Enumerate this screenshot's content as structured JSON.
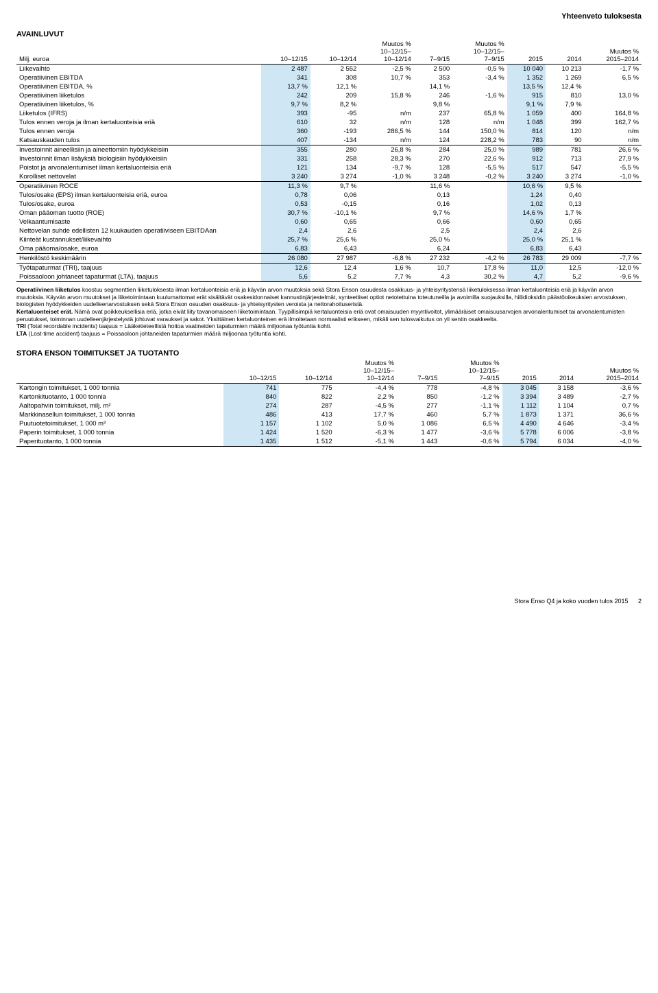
{
  "header": {
    "top_right": "Yhteenveto tuloksesta"
  },
  "avainluvut": {
    "title": "AVAINLUVUT",
    "columns": [
      "Milj. euroa",
      "10–12/15",
      "10–12/14",
      "Muutos %\n10–12/15–\n10–12/14",
      "7–9/15",
      "Muutos %\n10–12/15–\n7–9/15",
      "2015",
      "2014",
      "Muutos %\n2015–2014"
    ],
    "rows": [
      {
        "label": "Liikevaihto",
        "c": [
          "2 487",
          "2 552",
          "-2,5 %",
          "2 500",
          "-0,5 %",
          "10 040",
          "10 213",
          "-1,7 %"
        ],
        "ul": false
      },
      {
        "label": "Operatiivinen EBITDA",
        "c": [
          "341",
          "308",
          "10,7 %",
          "353",
          "-3,4 %",
          "1 352",
          "1 269",
          "6,5 %"
        ],
        "ul": false
      },
      {
        "label": "Operatiivinen EBITDA, %",
        "c": [
          "13,7 %",
          "12,1 %",
          "",
          "14,1 %",
          "",
          "13,5 %",
          "12,4 %",
          ""
        ],
        "ul": false
      },
      {
        "label": "Operatiivinen liiketulos",
        "c": [
          "242",
          "209",
          "15,8 %",
          "246",
          "-1,6 %",
          "915",
          "810",
          "13,0 %"
        ],
        "ul": false
      },
      {
        "label": "Operatiivinen liiketulos, %",
        "c": [
          "9,7 %",
          "8,2 %",
          "",
          "9,8 %",
          "",
          "9,1 %",
          "7,9 %",
          ""
        ],
        "ul": false
      },
      {
        "label": "Liiketulos (IFRS)",
        "c": [
          "393",
          "-95",
          "n/m",
          "237",
          "65,8 %",
          "1 059",
          "400",
          "164,8 %"
        ],
        "ul": false
      },
      {
        "label": "Tulos ennen veroja ja ilman kertaluonteisia eriä",
        "c": [
          "610",
          "32",
          "n/m",
          "128",
          "n/m",
          "1 048",
          "399",
          "162,7 %"
        ],
        "ul": false
      },
      {
        "label": "Tulos ennen veroja",
        "c": [
          "360",
          "-193",
          "286,5 %",
          "144",
          "150,0 %",
          "814",
          "120",
          "n/m"
        ],
        "ul": false
      },
      {
        "label": "Katsauskauden tulos",
        "c": [
          "407",
          "-134",
          "n/m",
          "124",
          "228,2 %",
          "783",
          "90",
          "n/m"
        ],
        "ul": true
      },
      {
        "label": "Investoinnit aineellisiin ja aineettomiin hyödykkeisiin",
        "c": [
          "355",
          "280",
          "26,8 %",
          "284",
          "25,0 %",
          "989",
          "781",
          "26,6 %"
        ],
        "ul": false
      },
      {
        "label": "Investoinnit ilman lisäyksiä biologisiin hyödykkeisiin",
        "c": [
          "331",
          "258",
          "28,3 %",
          "270",
          "22,6 %",
          "912",
          "713",
          "27,9 %"
        ],
        "ul": false
      },
      {
        "label": "Poistot ja arvonalentumiset ilman kertaluonteisia eriä",
        "c": [
          "121",
          "134",
          "-9,7 %",
          "128",
          "-5,5 %",
          "517",
          "547",
          "-5,5 %"
        ],
        "ul": false
      },
      {
        "label": "Korolliset nettovelat",
        "c": [
          "3 240",
          "3 274",
          "-1,0 %",
          "3 248",
          "-0,2 %",
          "3 240",
          "3 274",
          "-1,0 %"
        ],
        "ul": true
      },
      {
        "label": "Operatiivinen ROCE",
        "c": [
          "11,3 %",
          "9,7 %",
          "",
          "11,6 %",
          "",
          "10,6 %",
          "9,5 %",
          ""
        ],
        "ul": false
      },
      {
        "label": "Tulos/osake (EPS) ilman kertaluonteisia eriä, euroa",
        "c": [
          "0,78",
          "0,06",
          "",
          "0,13",
          "",
          "1,24",
          "0,40",
          ""
        ],
        "ul": false
      },
      {
        "label": "Tulos/osake, euroa",
        "c": [
          "0,53",
          "-0,15",
          "",
          "0,16",
          "",
          "1,02",
          "0,13",
          ""
        ],
        "ul": false
      },
      {
        "label": "Oman pääoman tuotto (ROE)",
        "c": [
          "30,7 %",
          "-10,1 %",
          "",
          "9,7 %",
          "",
          "14,6 %",
          "1,7 %",
          ""
        ],
        "ul": false
      },
      {
        "label": "Velkaantumisaste",
        "c": [
          "0,60",
          "0,65",
          "",
          "0,66",
          "",
          "0,60",
          "0,65",
          ""
        ],
        "ul": false
      },
      {
        "label": "Nettovelan suhde edellisten 12 kuukauden operatiiviseen EBITDAan",
        "c": [
          "2,4",
          "2,6",
          "",
          "2,5",
          "",
          "2,4",
          "2,6",
          ""
        ],
        "ul": false
      },
      {
        "label": "Kiinteät kustannukset/liikevaihto",
        "c": [
          "25,7 %",
          "25,6 %",
          "",
          "25,0 %",
          "",
          "25,0 %",
          "25,1 %",
          ""
        ],
        "ul": false
      },
      {
        "label": "Oma pääoma/osake, euroa",
        "c": [
          "6,83",
          "6,43",
          "",
          "6,24",
          "",
          "6,83",
          "6,43",
          ""
        ],
        "ul": true
      },
      {
        "label": "Henkilöstö keskimäärin",
        "c": [
          "26 080",
          "27 987",
          "-6,8 %",
          "27 232",
          "-4,2 %",
          "26 783",
          "29 009",
          "-7,7 %"
        ],
        "ul": true
      },
      {
        "label": "Työtapaturmat (TRI), taajuus",
        "c": [
          "12,6",
          "12,4",
          "1,6 %",
          "10,7",
          "17,8 %",
          "11,0",
          "12,5",
          "-12,0 %"
        ],
        "ul": false
      },
      {
        "label": "Poissaoloon johtaneet tapaturmat (LTA), taajuus",
        "c": [
          "5,6",
          "5,2",
          "7,7 %",
          "4,3",
          "30,2 %",
          "4,7",
          "5,2",
          "-9,6 %"
        ],
        "ul": true
      }
    ],
    "hl_columns": [
      0,
      5
    ],
    "hl_color": "#cfe7f5"
  },
  "notes": {
    "p1": "Operatiivinen liiketulos koostuu segmenttien liiketuloksesta ilman kertaluonteisia eriä ja käyvän arvon muutoksia sekä Stora Enson osuudesta osakkuus- ja yhteisyritystensä liiketuloksessa ilman kertaluonteisia eriä ja käyvän arvon muutoksia. Käyvän arvon muutokset ja liiketoimintaan kuulumattomat erät sisältävät osakesidonnaiset kannustinjärjestelmät, synteettiset optiot netotettuina toteutuneilla ja avoimilla suojauksilla, hiilidioksidin päästöoikeuksien arvostuksen, biologisten hyödykkeiden uudelleenarvostuksen sekä Stora Enson osuuden osakkuus- ja yhteisyritysten veroista ja nettorahoituseristä.",
    "bold_kert": "Kertaluonteiset erät.",
    "p2": " Nämä ovat poikkeuksellisia eriä, jotka eivät liity tavanomaiseen liiketoimintaan. Tyypillisimpiä kertaluonteisia eriä ovat omaisuuden myyntivoitot, ylimääräiset omaisuusarvojen arvonalentumiset tai arvonalentumisten peruutukset, toiminnan uudelleenjärjestelystä johtuvat varaukset ja sakot. Yksittäinen kertaluonteinen erä ilmoitetaan normaalisti erikseen, mikäli sen tulosvaikutus on yli sentin osakkeelta.",
    "bold_tri": "TRI",
    "p3": " (Total recordable incidents) taajuus = Lääketieteellistä hoitoa vaatineiden tapaturmien määrä miljoonaa työtuntia kohti.",
    "bold_lta": "LTA",
    "p4": " (Lost-time accident) taajuus = Poissaoloon johtaneiden tapaturmien määrä miljoonaa työtuntia kohti."
  },
  "tuotanto": {
    "title": "STORA ENSON TOIMITUKSET JA TUOTANTO",
    "columns": [
      "",
      "10–12/15",
      "10–12/14",
      "Muutos %\n10–12/15–\n10–12/14",
      "7–9/15",
      "Muutos %\n10–12/15–\n7–9/15",
      "2015",
      "2014",
      "Muutos %\n2015–2014"
    ],
    "rows": [
      {
        "label": "Kartongin toimitukset, 1 000 tonnia",
        "c": [
          "741",
          "775",
          "-4,4 %",
          "778",
          "-4,8 %",
          "3 045",
          "3 158",
          "-3,6 %"
        ],
        "ul": false
      },
      {
        "label": "Kartonkituotanto, 1 000 tonnia",
        "c": [
          "840",
          "822",
          "2,2 %",
          "850",
          "-1,2 %",
          "3 394",
          "3 489",
          "-2,7 %"
        ],
        "ul": false
      },
      {
        "label": "Aaltopahvin toimitukset, milj. m²",
        "c": [
          "274",
          "287",
          "-4,5 %",
          "277",
          "-1,1 %",
          "1 112",
          "1 104",
          "0,7 %"
        ],
        "ul": false
      },
      {
        "label": "Markkinasellun toimitukset, 1 000 tonnia",
        "c": [
          "486",
          "413",
          "17,7 %",
          "460",
          "5,7 %",
          "1 873",
          "1 371",
          "36,6 %"
        ],
        "ul": false
      },
      {
        "label": "Puutuotetoimitukset, 1 000 m³",
        "c": [
          "1 157",
          "1 102",
          "5,0 %",
          "1 086",
          "6,5 %",
          "4 490",
          "4 646",
          "-3,4 %"
        ],
        "ul": false
      },
      {
        "label": "Paperin toimitukset, 1 000 tonnia",
        "c": [
          "1 424",
          "1 520",
          "-6,3 %",
          "1 477",
          "-3,6 %",
          "5 778",
          "6 006",
          "-3,8 %"
        ],
        "ul": false
      },
      {
        "label": "Paperituotanto, 1 000 tonnia",
        "c": [
          "1 435",
          "1 512",
          "-5,1 %",
          "1 443",
          "-0,6 %",
          "5 794",
          "6 034",
          "-4,0 %"
        ],
        "ul": true
      }
    ],
    "hl_columns": [
      0,
      5
    ],
    "hl_color": "#cfe7f5"
  },
  "footer": {
    "text": "Stora Enso Q4 ja koko vuoden tulos 2015",
    "page": "2"
  }
}
